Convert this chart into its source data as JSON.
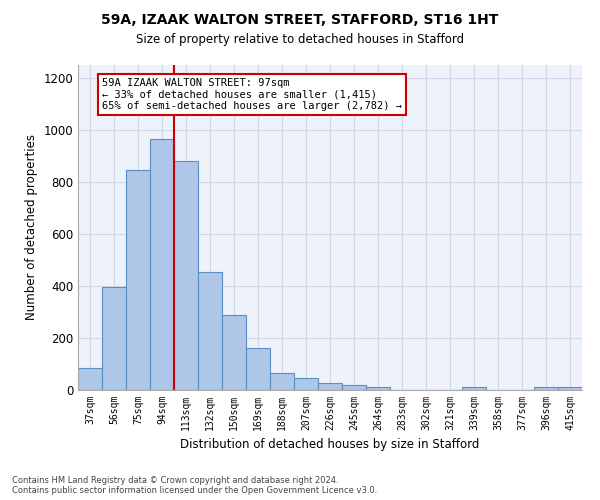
{
  "title1": "59A, IZAAK WALTON STREET, STAFFORD, ST16 1HT",
  "title2": "Size of property relative to detached houses in Stafford",
  "xlabel": "Distribution of detached houses by size in Stafford",
  "ylabel": "Number of detached properties",
  "categories": [
    "37sqm",
    "56sqm",
    "75sqm",
    "94sqm",
    "113sqm",
    "132sqm",
    "150sqm",
    "169sqm",
    "188sqm",
    "207sqm",
    "226sqm",
    "245sqm",
    "264sqm",
    "283sqm",
    "302sqm",
    "321sqm",
    "339sqm",
    "358sqm",
    "377sqm",
    "396sqm",
    "415sqm"
  ],
  "values": [
    85,
    395,
    845,
    965,
    880,
    455,
    290,
    160,
    65,
    48,
    28,
    20,
    10,
    0,
    0,
    0,
    10,
    0,
    0,
    10,
    10
  ],
  "bar_color": "#aec6e8",
  "bar_edge_color": "#5a8fc4",
  "grid_color": "#d0d8e8",
  "background_color": "#eef2fa",
  "red_line_index": 3.5,
  "annotation_text": "59A IZAAK WALTON STREET: 97sqm\n← 33% of detached houses are smaller (1,415)\n65% of semi-detached houses are larger (2,782) →",
  "annotation_box_color": "#ffffff",
  "annotation_border_color": "#cc0000",
  "footer1": "Contains HM Land Registry data © Crown copyright and database right 2024.",
  "footer2": "Contains public sector information licensed under the Open Government Licence v3.0.",
  "ylim": [
    0,
    1250
  ],
  "yticks": [
    0,
    200,
    400,
    600,
    800,
    1000,
    1200
  ]
}
